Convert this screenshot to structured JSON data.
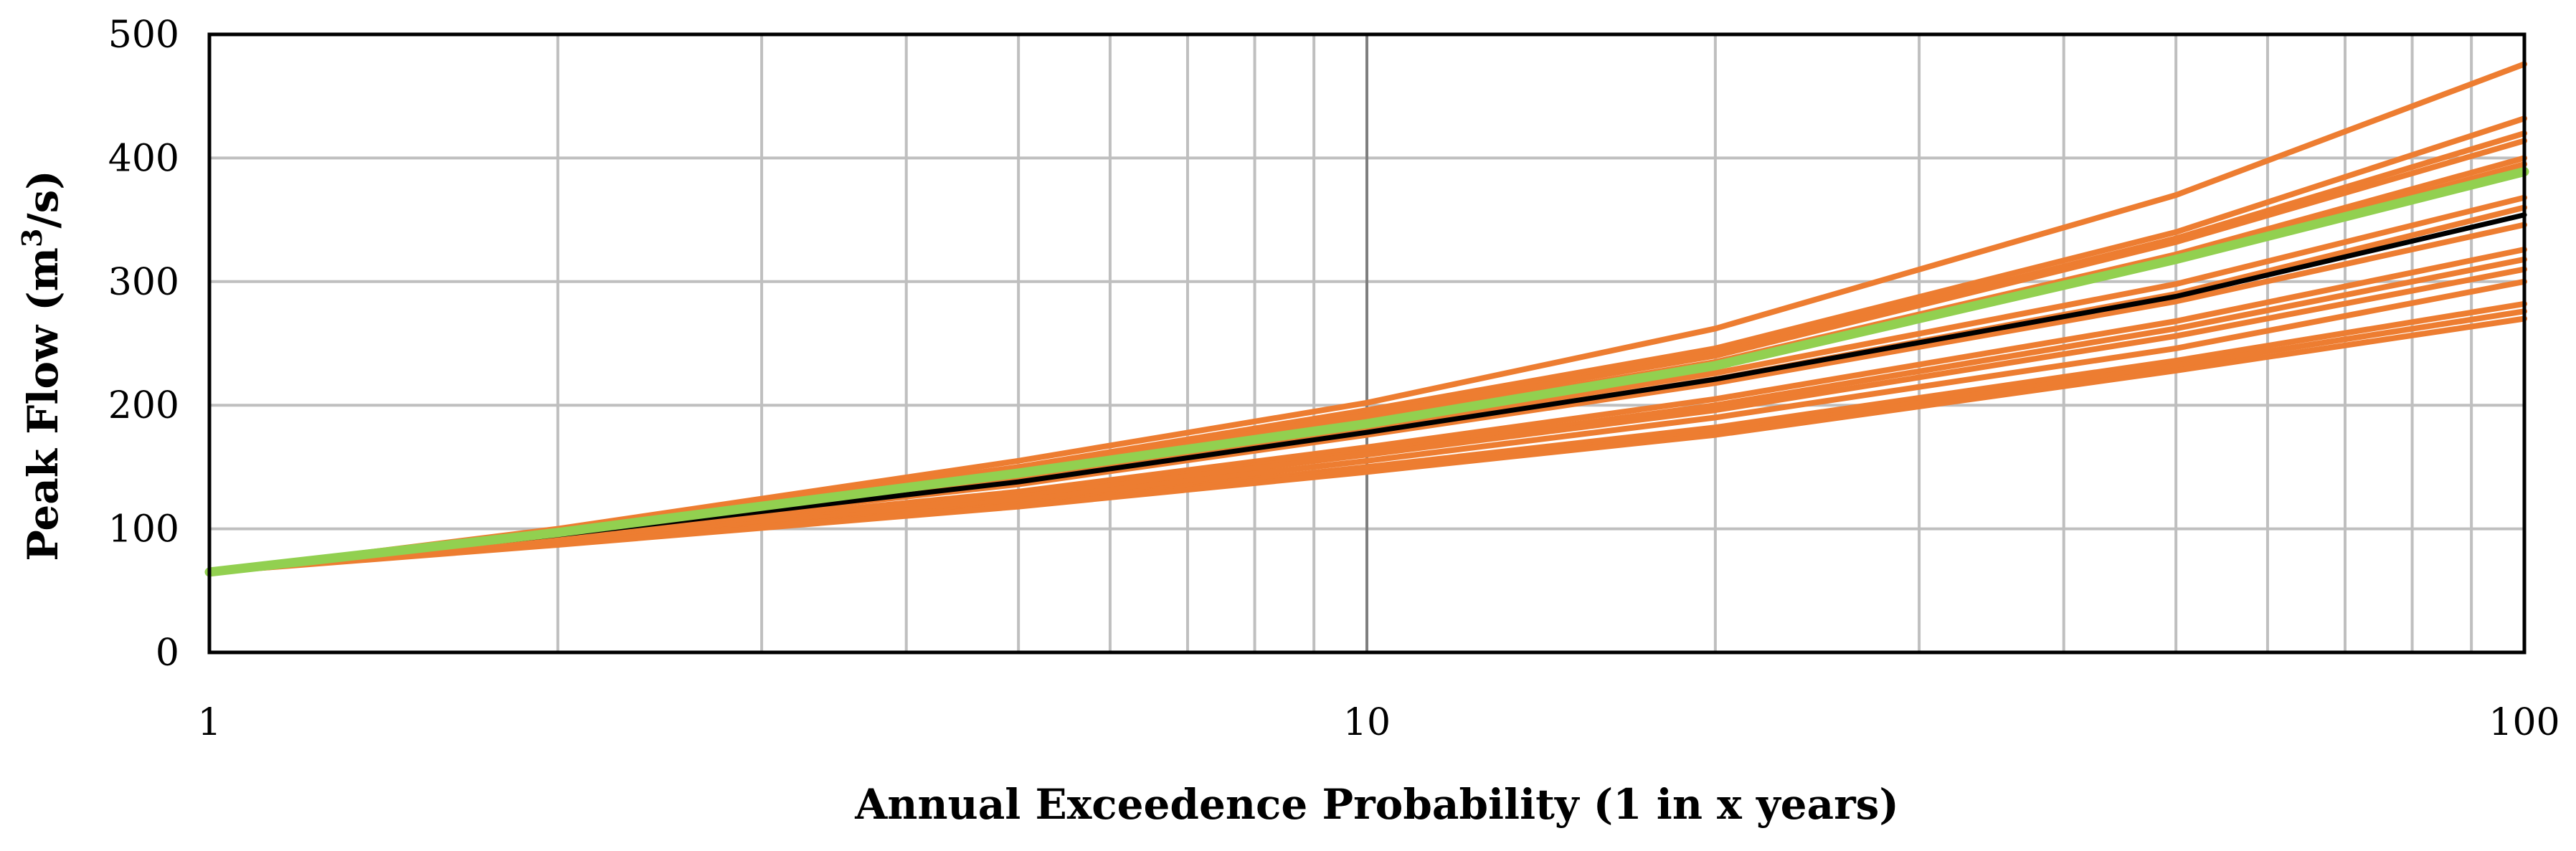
{
  "chart_data": {
    "type": "line",
    "xlabel": "Annual Exceedence Probability (1 in x years)",
    "ylabel_main": "Peak Flow (m",
    "ylabel_sup": "3",
    "ylabel_tail": "/s)",
    "x_scale": "log",
    "xlim": [
      1,
      100
    ],
    "ylim": [
      0,
      500
    ],
    "x_ticks": [
      1,
      10,
      100
    ],
    "x_tick_labels": [
      "1",
      "10",
      "100"
    ],
    "y_ticks": [
      0,
      100,
      200,
      300,
      400,
      500
    ],
    "y_tick_labels": [
      "0",
      "100",
      "200",
      "300",
      "400",
      "500"
    ],
    "grid": true,
    "x": [
      1,
      2,
      5,
      10,
      20,
      50,
      100
    ],
    "series": [
      {
        "color": "#ED7D31",
        "values": [
          65,
          100,
          155,
          202,
          262,
          370,
          476
        ]
      },
      {
        "color": "#ED7D31",
        "values": [
          65,
          99,
          150,
          196,
          246,
          340,
          432
        ]
      },
      {
        "color": "#ED7D31",
        "values": [
          65,
          98,
          148,
          194,
          242,
          335,
          420
        ]
      },
      {
        "color": "#ED7D31",
        "values": [
          65,
          98,
          147,
          192,
          240,
          332,
          414
        ]
      },
      {
        "color": "#ED7D31",
        "values": [
          65,
          97,
          145,
          188,
          235,
          322,
          400
        ]
      },
      {
        "color": "#ED7D31",
        "values": [
          65,
          97,
          144,
          186,
          232,
          318,
          395
        ]
      },
      {
        "color": "#ED7D31",
        "values": [
          65,
          96,
          140,
          182,
          226,
          298,
          368
        ]
      },
      {
        "color": "#ED7D31",
        "values": [
          65,
          95,
          137,
          178,
          221,
          290,
          360
        ]
      },
      {
        "color": "#ED7D31",
        "values": [
          65,
          95,
          136,
          176,
          218,
          284,
          346
        ]
      },
      {
        "color": "#ED7D31",
        "values": [
          65,
          93,
          130,
          166,
          205,
          268,
          326
        ]
      },
      {
        "color": "#ED7D31",
        "values": [
          65,
          92,
          128,
          162,
          200,
          262,
          318
        ]
      },
      {
        "color": "#ED7D31",
        "values": [
          65,
          91,
          126,
          160,
          196,
          256,
          310
        ]
      },
      {
        "color": "#ED7D31",
        "values": [
          65,
          90,
          123,
          155,
          190,
          246,
          300
        ]
      },
      {
        "color": "#ED7D31",
        "values": [
          65,
          88,
          120,
          150,
          182,
          236,
          282
        ]
      },
      {
        "color": "#ED7D31",
        "values": [
          65,
          88,
          119,
          148,
          178,
          232,
          276
        ]
      },
      {
        "color": "#ED7D31",
        "values": [
          65,
          87,
          118,
          146,
          176,
          228,
          270
        ]
      },
      {
        "color": "#000000",
        "values": [
          65,
          95,
          138,
          178,
          221,
          288,
          354
        ]
      },
      {
        "color": "#92D050",
        "values": [
          65,
          97,
          145,
          185,
          232,
          318,
          389
        ]
      }
    ]
  }
}
